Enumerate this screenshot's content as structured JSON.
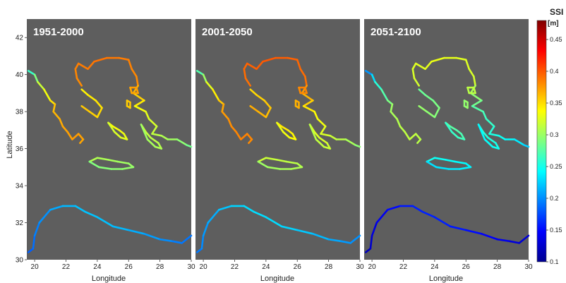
{
  "figure": {
    "ylabel": "Latitude",
    "xlabel": "Longitude",
    "lon_range": [
      19.5,
      30
    ],
    "lat_range": [
      30,
      43
    ],
    "lon_ticks": [
      20,
      22,
      24,
      26,
      28,
      30
    ],
    "lat_ticks": [
      30,
      32,
      34,
      36,
      38,
      40,
      42
    ],
    "background_color": "#5e5e5e",
    "panels": [
      {
        "title": "1951-2000",
        "shift": 0.0
      },
      {
        "title": "2001-2050",
        "shift": 0.01
      },
      {
        "title": "2051-2100",
        "shift": -0.06
      }
    ]
  },
  "colorbar": {
    "title": "SSI",
    "unit": "[m]",
    "range": [
      0.1,
      0.48
    ],
    "ticks": [
      "0.1",
      "0.15",
      "0.2",
      "0.25",
      "0.3",
      "0.35",
      "0.4",
      "0.45"
    ],
    "colormap": "jet"
  }
}
